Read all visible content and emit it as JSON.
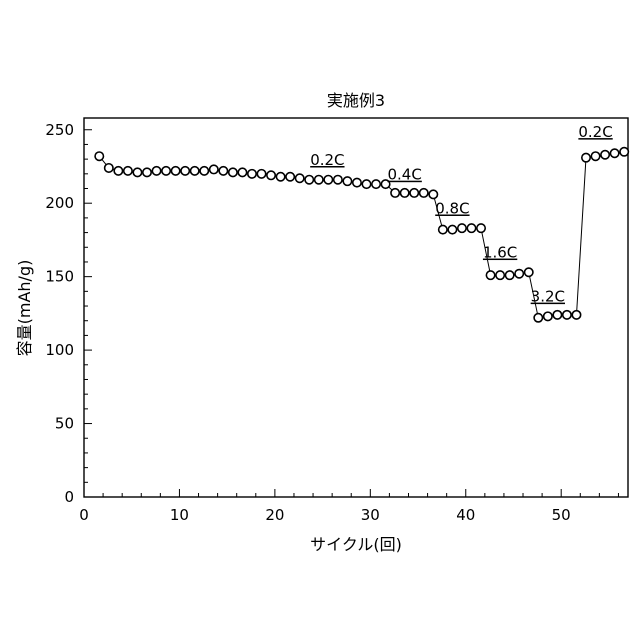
{
  "chart_data": {
    "type": "scatter",
    "title": "実施例3",
    "xlabel": "サイクル(回)",
    "ylabel": "容量(mAh/g)",
    "xlim": [
      0,
      57
    ],
    "ylim": [
      0,
      258
    ],
    "xticks": [
      0,
      10,
      20,
      30,
      40,
      50
    ],
    "yticks": [
      0,
      50,
      100,
      150,
      200,
      250
    ],
    "grid": false,
    "marker": "open-circle",
    "connected": true,
    "series": [
      {
        "x": [
          1.6,
          2.6,
          3.6,
          4.6,
          5.6,
          6.6,
          7.6,
          8.6,
          9.6,
          10.6,
          11.6,
          12.6,
          13.6,
          14.6,
          15.6,
          16.6,
          17.6,
          18.6,
          19.6,
          20.6,
          21.6,
          22.6,
          23.6,
          24.6,
          25.6,
          26.6,
          27.6,
          28.6,
          29.6,
          30.6,
          31.6,
          32.6,
          33.6,
          34.6,
          35.6,
          36.6,
          37.6,
          38.6,
          39.6,
          40.6,
          41.6,
          42.6,
          43.6,
          44.6,
          45.6,
          46.6,
          47.6,
          48.6,
          49.6,
          50.6,
          51.6,
          52.6,
          53.6,
          54.6,
          55.6,
          56.6
        ],
        "y": [
          232,
          224,
          222,
          222,
          221,
          221,
          222,
          222,
          222,
          222,
          222,
          222,
          223,
          222,
          221,
          221,
          220,
          220,
          219,
          218,
          218,
          217,
          216,
          216,
          216,
          216,
          215,
          214,
          213,
          213,
          213,
          207,
          207,
          207,
          207,
          206,
          182,
          182,
          183,
          183,
          183,
          151,
          151,
          151,
          152,
          153,
          122,
          123,
          124,
          124,
          124,
          231,
          232,
          233,
          234,
          235
        ]
      }
    ],
    "annotations": [
      {
        "text": "0.2C",
        "x": 25.5,
        "y": 226
      },
      {
        "text": "0.4C",
        "x": 33.6,
        "y": 216
      },
      {
        "text": "0.8C",
        "x": 38.6,
        "y": 193
      },
      {
        "text": "1.6C",
        "x": 43.6,
        "y": 163
      },
      {
        "text": "3.2C",
        "x": 48.6,
        "y": 133
      },
      {
        "text": "0.2C",
        "x": 53.6,
        "y": 245
      }
    ]
  }
}
